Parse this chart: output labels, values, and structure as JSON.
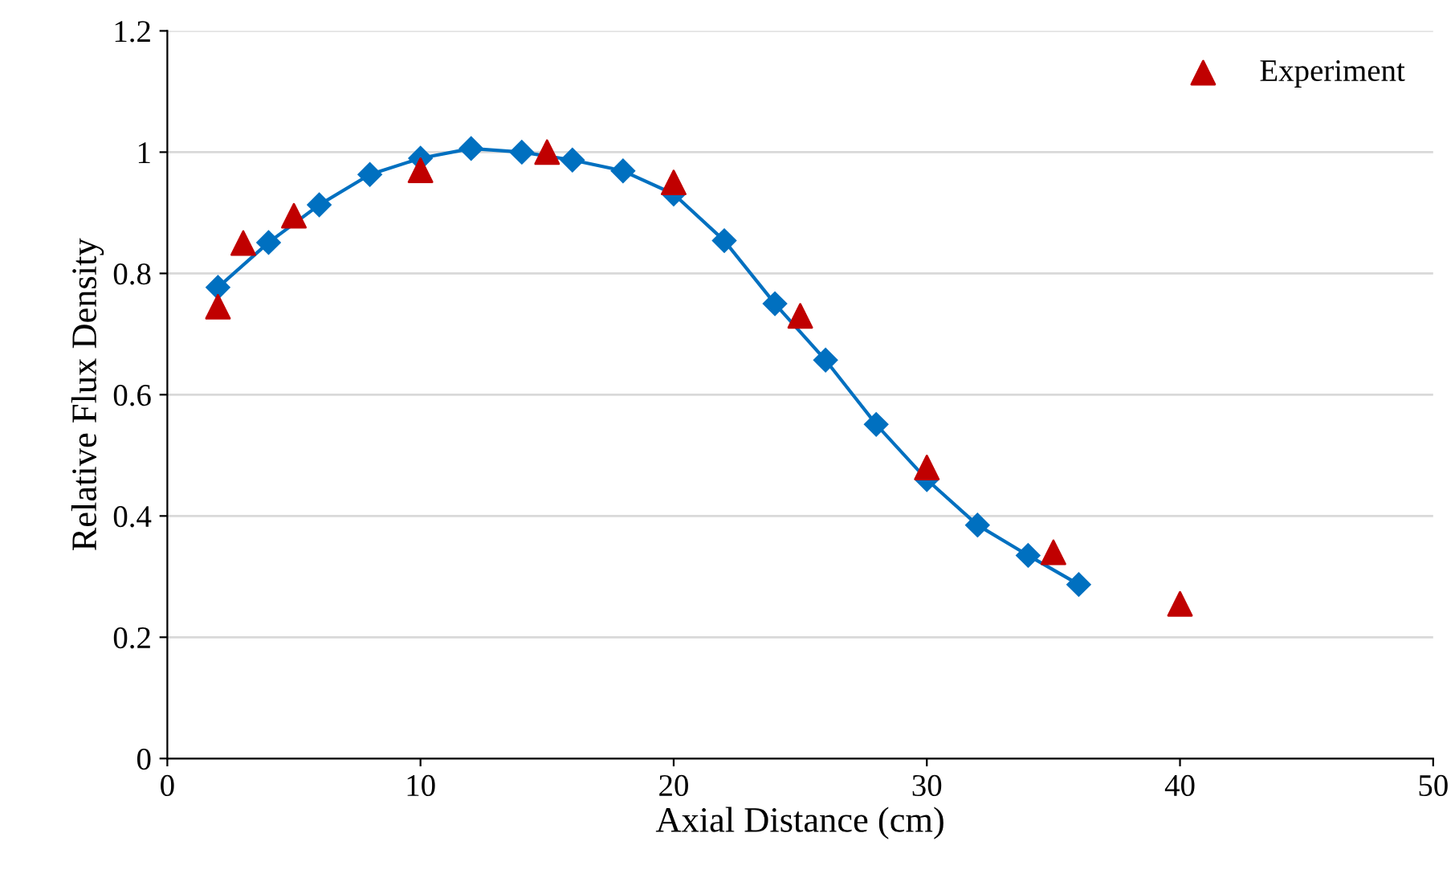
{
  "chart_data": {
    "type": "line",
    "xlabel": "Axial Distance (cm)",
    "ylabel": "Relative Flux Density",
    "series": [
      {
        "name": "Experiment",
        "type": "scatter",
        "marker": "triangle",
        "color": "#c00000",
        "x": [
          2,
          3,
          5,
          10,
          15,
          20,
          25,
          30,
          35,
          40
        ],
        "values": [
          0.745,
          0.85,
          0.895,
          0.97,
          1.0,
          0.95,
          0.73,
          0.48,
          0.34,
          0.255
        ]
      },
      {
        "marker": "diamond",
        "color": "#0070c0",
        "x": [
          2,
          4,
          6,
          8,
          10,
          12,
          14,
          16,
          18,
          20,
          22,
          24,
          26,
          28,
          30,
          32,
          34,
          36
        ],
        "values": [
          0.777,
          0.851,
          0.913,
          0.963,
          0.99,
          1.006,
          1.0,
          0.987,
          0.969,
          0.931,
          0.854,
          0.75,
          0.657,
          0.551,
          0.46,
          0.385,
          0.335,
          0.287
        ]
      }
    ],
    "xlim": [
      0,
      50
    ],
    "xticks": [
      0,
      10,
      20,
      30,
      40,
      50
    ],
    "ylim": [
      0,
      1.2
    ],
    "yticks": [
      0,
      0.2,
      0.4,
      0.6,
      0.8,
      1,
      1.2
    ],
    "grid": "y",
    "legend": "top right"
  }
}
